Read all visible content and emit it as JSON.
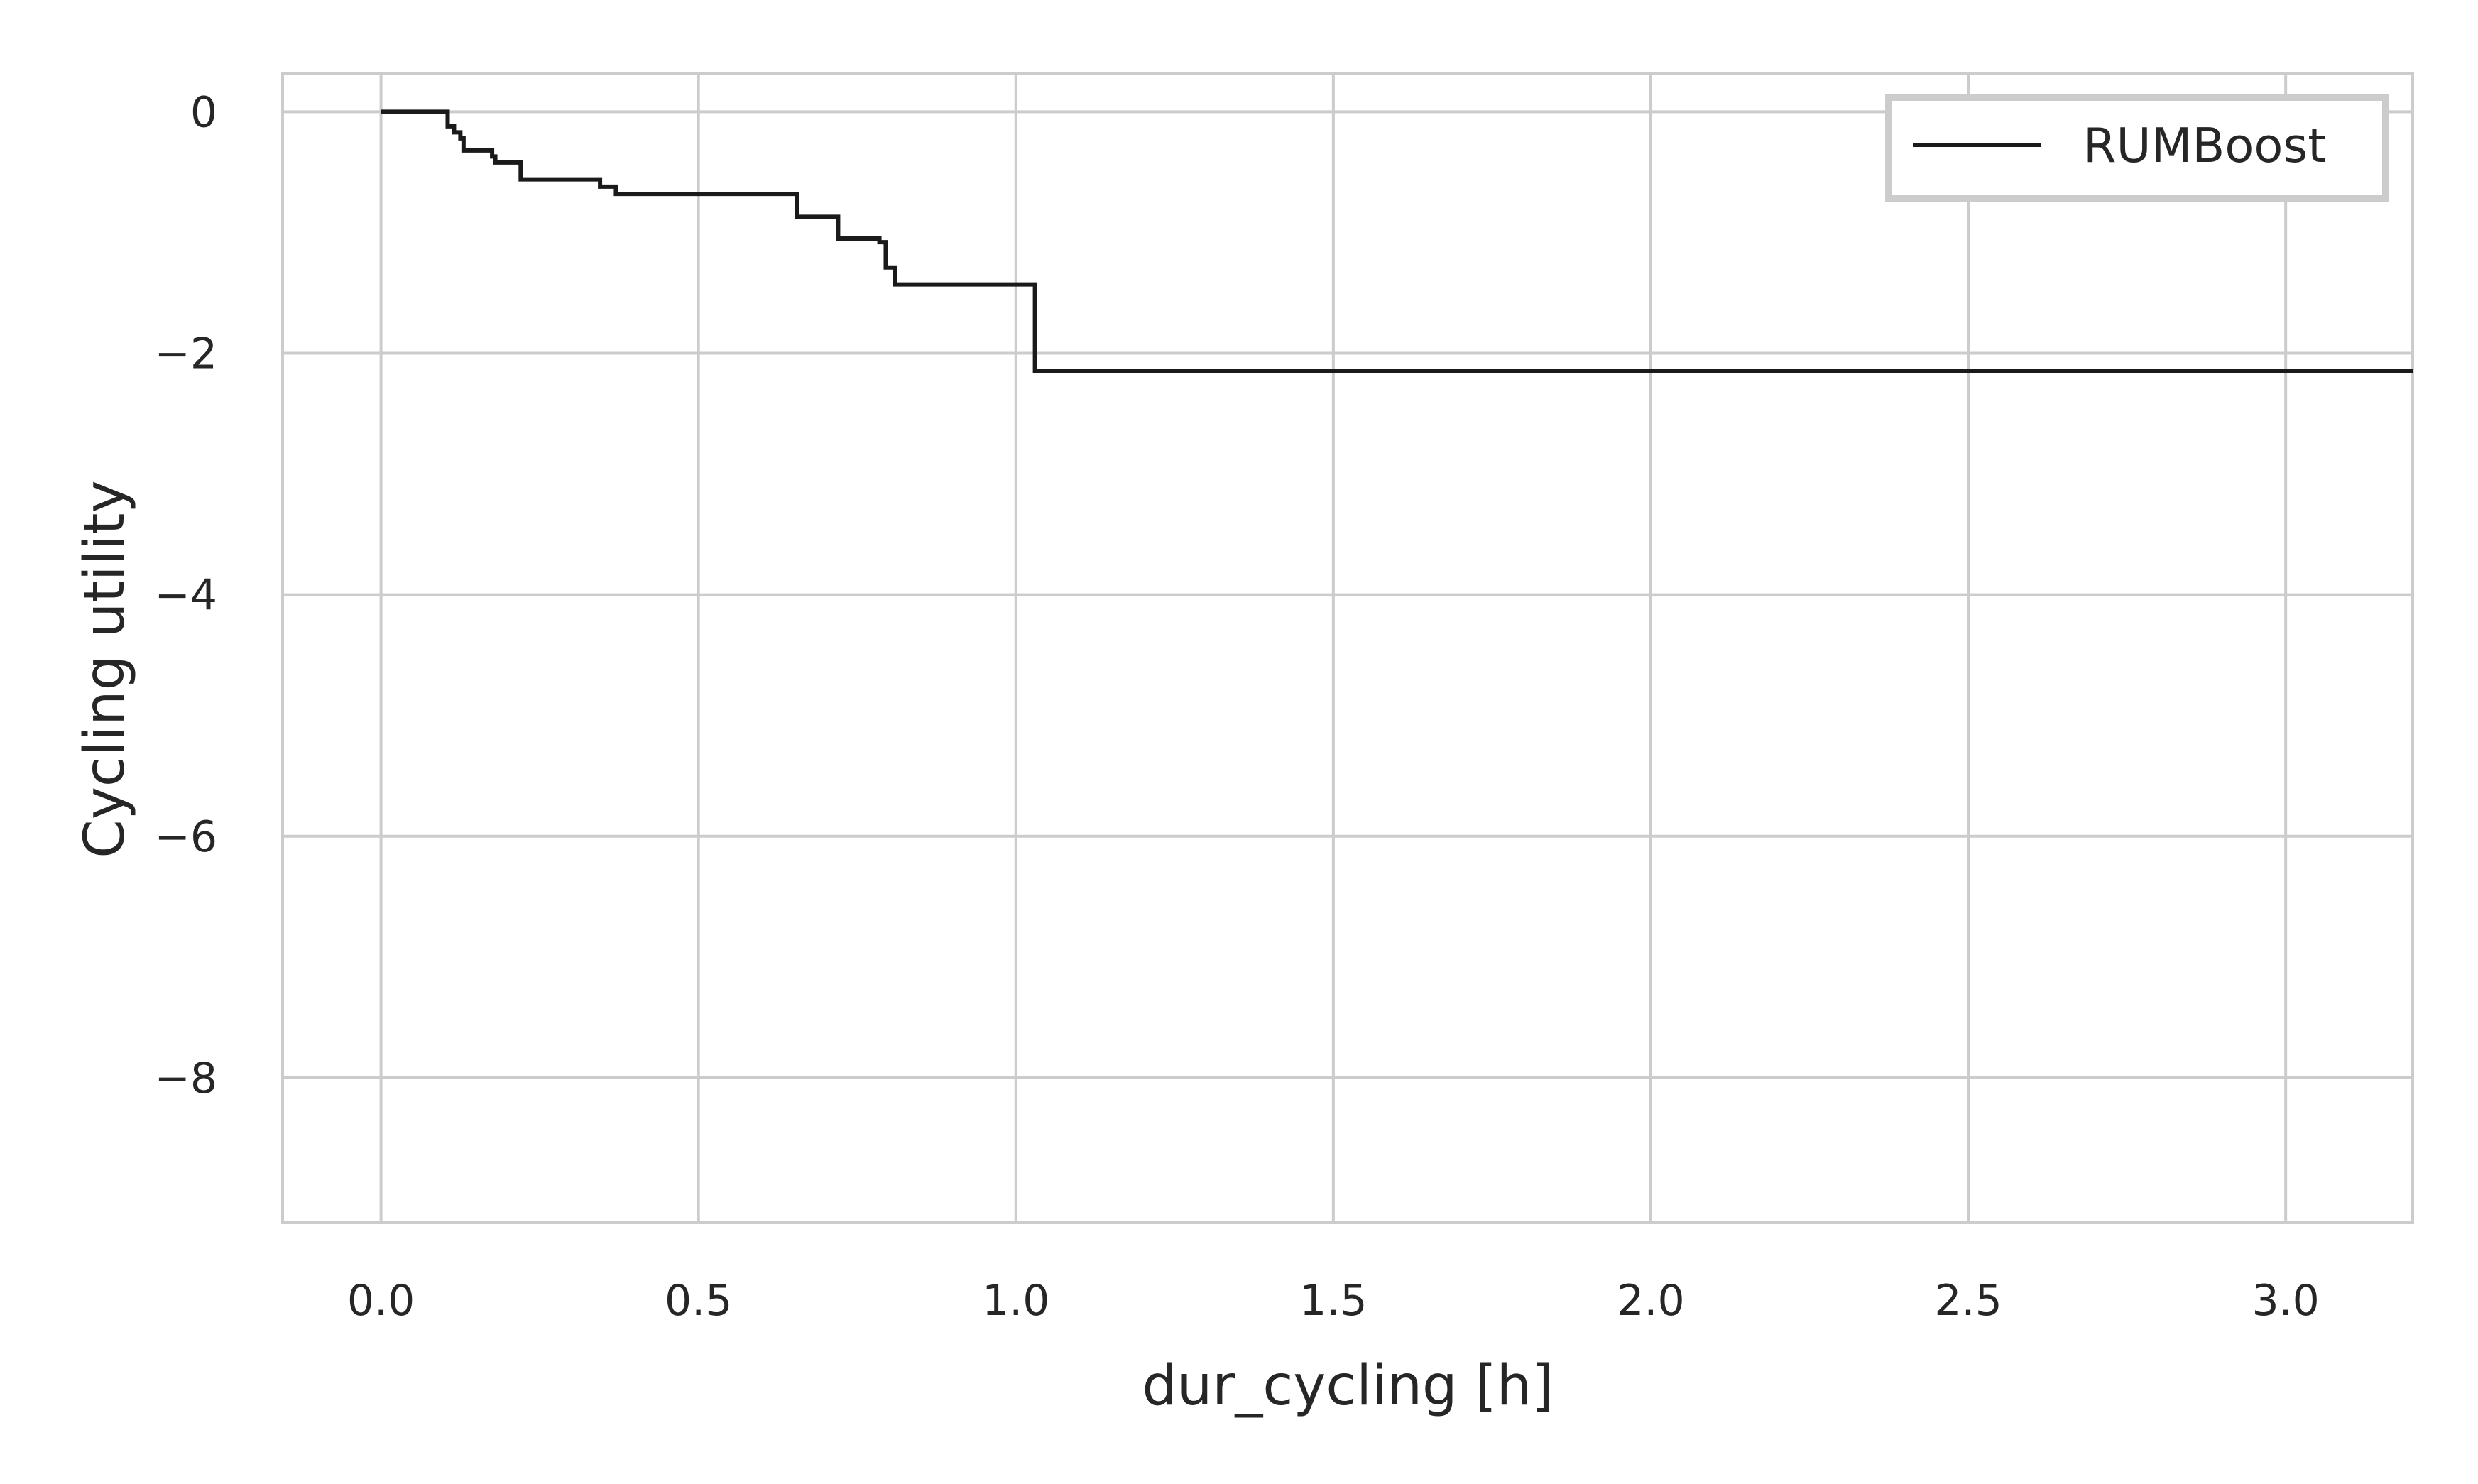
{
  "chart_data": {
    "type": "line",
    "title": "",
    "xlabel": "dur_cycling [h]",
    "ylabel": "Cycling utility",
    "xlim": [
      -0.155,
      3.2
    ],
    "ylim": [
      -9.2,
      0.32
    ],
    "xticks": [
      0.0,
      0.5,
      1.0,
      1.5,
      2.0,
      2.5,
      3.0
    ],
    "xtick_labels": [
      "0.0",
      "0.5",
      "1.0",
      "1.5",
      "2.0",
      "2.5",
      "3.0"
    ],
    "yticks": [
      0,
      -2,
      -4,
      -6,
      -8
    ],
    "ytick_labels": [
      "0",
      "−2",
      "−4",
      "−6",
      "−8"
    ],
    "grid": true,
    "legend_position": "top-right",
    "series": [
      {
        "name": "RUMBoost",
        "color": "#1a1a1a",
        "drawstyle": "steps-post",
        "x": [
          0.0,
          0.105,
          0.115,
          0.125,
          0.13,
          0.175,
          0.18,
          0.22,
          0.345,
          0.37,
          0.655,
          0.72,
          0.785,
          0.795,
          0.81,
          1.03,
          3.2
        ],
        "y": [
          0.0,
          -0.12,
          -0.17,
          -0.22,
          -0.32,
          -0.37,
          -0.42,
          -0.56,
          -0.62,
          -0.68,
          -0.87,
          -1.05,
          -1.08,
          -1.29,
          -1.43,
          -2.15,
          -2.15
        ]
      }
    ]
  }
}
